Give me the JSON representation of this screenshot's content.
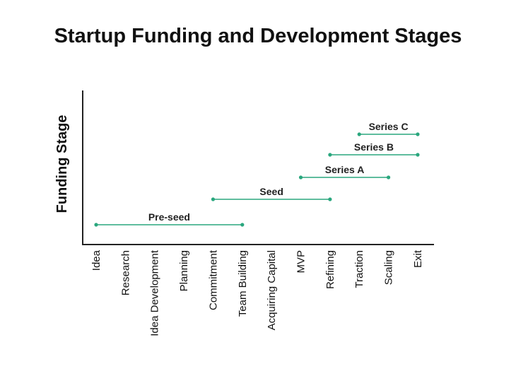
{
  "chart_data": {
    "type": "range_bar",
    "title": "Startup Funding and Development Stages",
    "xlabel": "",
    "ylabel": "Funding Stage",
    "categories": [
      "Idea",
      "Research",
      "Idea Development",
      "Planning",
      "Commitment",
      "Team Building",
      "Acquiring Capital",
      "MVP",
      "Refining",
      "Traction",
      "Scaling",
      "Exit"
    ],
    "series": [
      {
        "name": "Pre-seed",
        "start": "Idea",
        "end": "Team Building",
        "color": "#2aa77e"
      },
      {
        "name": "Seed",
        "start": "Commitment",
        "end": "Refining",
        "color": "#2aa77e"
      },
      {
        "name": "Series A",
        "start": "MVP",
        "end": "Scaling",
        "color": "#2aa77e"
      },
      {
        "name": "Series B",
        "start": "Refining",
        "end": "Exit",
        "color": "#2aa77e"
      },
      {
        "name": "Series C",
        "start": "Traction",
        "end": "Exit",
        "color": "#2aa77e"
      }
    ],
    "grid": false,
    "legend": "none"
  }
}
